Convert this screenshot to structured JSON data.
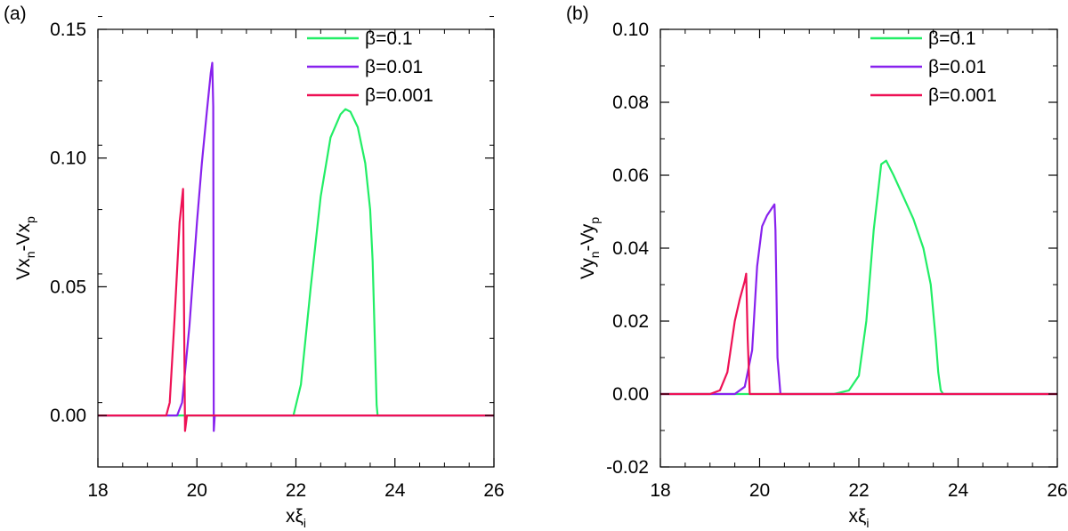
{
  "chart_data": [
    {
      "panel_label": "(a)",
      "type": "line",
      "xlabel": "xξ",
      "xlabel_sub": "i",
      "ylabel": {
        "base1": "Vx",
        "sub1": "n",
        "mid": "-Vx",
        "sub2": "p"
      },
      "xlim": [
        18,
        26
      ],
      "ylim": [
        -0.02,
        0.15
      ],
      "xticks": [
        18,
        20,
        22,
        24,
        26
      ],
      "xtick_labels": [
        "18",
        "20",
        "22",
        "24",
        "26"
      ],
      "yticks": [
        0.0,
        0.05,
        0.1,
        0.15
      ],
      "ytick_labels": [
        "0.00",
        "0.05",
        "0.10",
        "0.15"
      ],
      "legend_position": "top-right",
      "series": [
        {
          "name": "β=0.1",
          "color": "#22ee66",
          "x": [
            18,
            21.95,
            22.1,
            22.3,
            22.5,
            22.7,
            22.9,
            23.0,
            23.1,
            23.25,
            23.4,
            23.5,
            23.55,
            23.6,
            23.63,
            23.65,
            26
          ],
          "y": [
            0,
            0,
            0.012,
            0.05,
            0.085,
            0.108,
            0.117,
            0.119,
            0.118,
            0.112,
            0.098,
            0.08,
            0.06,
            0.025,
            0.004,
            0,
            0
          ]
        },
        {
          "name": "β=0.01",
          "color": "#8822ee",
          "x": [
            18,
            19.6,
            19.7,
            19.85,
            20.0,
            20.1,
            20.2,
            20.28,
            20.31,
            20.33,
            20.34,
            20.36,
            26
          ],
          "y": [
            0,
            0,
            0.005,
            0.035,
            0.075,
            0.098,
            0.118,
            0.133,
            0.137,
            0.12,
            -0.006,
            0,
            0
          ]
        },
        {
          "name": "β=0.001",
          "color": "#ee1155",
          "x": [
            18,
            19.38,
            19.45,
            19.55,
            19.65,
            19.72,
            19.74,
            19.76,
            19.8,
            26
          ],
          "y": [
            0,
            0,
            0.005,
            0.038,
            0.075,
            0.088,
            0.04,
            -0.006,
            0,
            0
          ]
        }
      ]
    },
    {
      "panel_label": "(b)",
      "type": "line",
      "xlabel": "xξ",
      "xlabel_sub": "i",
      "ylabel": {
        "base1": "Vy",
        "sub1": "n",
        "mid": "-Vy",
        "sub2": "p"
      },
      "xlim": [
        18,
        26
      ],
      "ylim": [
        -0.02,
        0.1
      ],
      "xticks": [
        18,
        20,
        22,
        24,
        26
      ],
      "xtick_labels": [
        "18",
        "20",
        "22",
        "24",
        "26"
      ],
      "yticks": [
        -0.02,
        0.0,
        0.02,
        0.04,
        0.06,
        0.08,
        0.1
      ],
      "ytick_labels": [
        "-0.02",
        "0.00",
        "0.02",
        "0.04",
        "0.06",
        "0.08",
        "0.10"
      ],
      "legend_position": "top-right",
      "series": [
        {
          "name": "β=0.1",
          "color": "#22ee66",
          "x": [
            18,
            21.5,
            21.8,
            22.0,
            22.15,
            22.3,
            22.45,
            22.55,
            22.7,
            22.9,
            23.1,
            23.3,
            23.45,
            23.55,
            23.6,
            23.65,
            23.7,
            26
          ],
          "y": [
            0,
            0,
            0.001,
            0.005,
            0.02,
            0.045,
            0.063,
            0.064,
            0.06,
            0.054,
            0.048,
            0.04,
            0.03,
            0.015,
            0.006,
            0.001,
            0,
            0
          ]
        },
        {
          "name": "β=0.01",
          "color": "#8822ee",
          "x": [
            18,
            19.5,
            19.7,
            19.85,
            19.95,
            20.05,
            20.15,
            20.25,
            20.3,
            20.32,
            20.36,
            20.42,
            26
          ],
          "y": [
            0,
            0,
            0.002,
            0.012,
            0.035,
            0.046,
            0.049,
            0.051,
            0.052,
            0.045,
            0.01,
            0,
            0
          ]
        },
        {
          "name": "β=0.001",
          "color": "#ee1155",
          "x": [
            18,
            19.0,
            19.2,
            19.35,
            19.5,
            19.6,
            19.7,
            19.73,
            19.76,
            19.8,
            26
          ],
          "y": [
            0,
            0,
            0.001,
            0.006,
            0.02,
            0.026,
            0.031,
            0.033,
            0.015,
            0,
            0
          ]
        }
      ]
    }
  ]
}
